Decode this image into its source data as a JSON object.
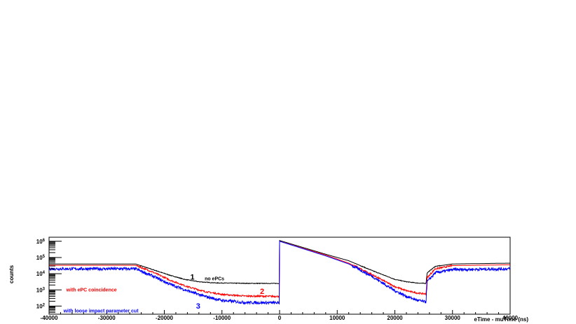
{
  "chart_data": {
    "type": "line",
    "title": "",
    "xlabel": "eTime - muTime  (ns)",
    "ylabel": "counts",
    "xlim": [
      -40000,
      40000
    ],
    "ylim_log10": [
      1.5,
      6.25
    ],
    "y_scale": "log",
    "grid": false,
    "x_ticks": [
      "-40000",
      "-30000",
      "-20000",
      "-10000",
      "0",
      "10000",
      "20000",
      "30000",
      "40000"
    ],
    "y_ticks": [
      {
        "base": "10",
        "exp": "2",
        "log10": 2
      },
      {
        "base": "10",
        "exp": "3",
        "log10": 3
      },
      {
        "base": "10",
        "exp": "4",
        "log10": 4
      },
      {
        "base": "10",
        "exp": "5",
        "log10": 5
      },
      {
        "base": "10",
        "exp": "6",
        "log10": 6
      }
    ],
    "series": [
      {
        "id": "1",
        "color": "#000000",
        "noise": 0.02,
        "points": [
          [
            -40000,
            4.6
          ],
          [
            -25000,
            4.6
          ],
          [
            -22000,
            4.25
          ],
          [
            -19000,
            3.9
          ],
          [
            -16500,
            3.65
          ],
          [
            -14000,
            3.5
          ],
          [
            -11000,
            3.43
          ],
          [
            -5000,
            3.4
          ],
          [
            -10,
            3.4
          ],
          [
            0,
            6.05
          ],
          [
            8000,
            5.2
          ],
          [
            12000,
            4.8
          ],
          [
            16000,
            4.2
          ],
          [
            20000,
            3.65
          ],
          [
            22000,
            3.5
          ],
          [
            24000,
            3.42
          ],
          [
            25400,
            3.4
          ],
          [
            25600,
            4.05
          ],
          [
            27000,
            4.45
          ],
          [
            30000,
            4.6
          ],
          [
            40000,
            4.65
          ]
        ]
      },
      {
        "id": "2",
        "color": "#ff0000",
        "noise": 0.05,
        "points": [
          [
            -40000,
            4.52
          ],
          [
            -25000,
            4.52
          ],
          [
            -22000,
            4.1
          ],
          [
            -19000,
            3.6
          ],
          [
            -16000,
            3.2
          ],
          [
            -13000,
            2.9
          ],
          [
            -10000,
            2.72
          ],
          [
            -6000,
            2.62
          ],
          [
            -10,
            2.6
          ],
          [
            0,
            6.0
          ],
          [
            8000,
            5.15
          ],
          [
            12000,
            4.65
          ],
          [
            16000,
            3.95
          ],
          [
            20000,
            3.2
          ],
          [
            22000,
            2.95
          ],
          [
            24000,
            2.8
          ],
          [
            25400,
            2.75
          ],
          [
            25600,
            3.75
          ],
          [
            27000,
            4.3
          ],
          [
            30000,
            4.5
          ],
          [
            40000,
            4.55
          ]
        ]
      },
      {
        "id": "3",
        "color": "#0000ff",
        "noise": 0.09,
        "points": [
          [
            -40000,
            4.3
          ],
          [
            -25000,
            4.3
          ],
          [
            -22000,
            3.85
          ],
          [
            -19000,
            3.35
          ],
          [
            -16000,
            2.95
          ],
          [
            -13000,
            2.6
          ],
          [
            -10000,
            2.35
          ],
          [
            -6000,
            2.22
          ],
          [
            -10,
            2.2
          ],
          [
            0,
            6.0
          ],
          [
            8000,
            5.1
          ],
          [
            12000,
            4.6
          ],
          [
            16000,
            3.85
          ],
          [
            20000,
            2.95
          ],
          [
            22000,
            2.6
          ],
          [
            24000,
            2.35
          ],
          [
            25400,
            2.25
          ],
          [
            25600,
            3.5
          ],
          [
            27000,
            4.05
          ],
          [
            30000,
            4.25
          ],
          [
            40000,
            4.3
          ]
        ]
      }
    ],
    "annotations": [
      {
        "text": "1",
        "color": "#000000",
        "x": -15500,
        "y": 3.63,
        "size": 11
      },
      {
        "text": "no ePCs",
        "color": "#000000",
        "x": -13000,
        "y": 3.6,
        "size": 7
      },
      {
        "text": "with ePC coincidence",
        "color": "#ff0000",
        "x": -37000,
        "y": 2.9,
        "size": 7
      },
      {
        "text": "2",
        "color": "#ff0000",
        "x": -3400,
        "y": 2.75,
        "size": 11
      },
      {
        "text": "3",
        "color": "#0000ff",
        "x": -14500,
        "y": 1.85,
        "size": 11
      },
      {
        "text": "with loose impact parameter cut",
        "color": "#0000ff",
        "x": -37500,
        "y": 1.6,
        "size": 7
      }
    ]
  }
}
